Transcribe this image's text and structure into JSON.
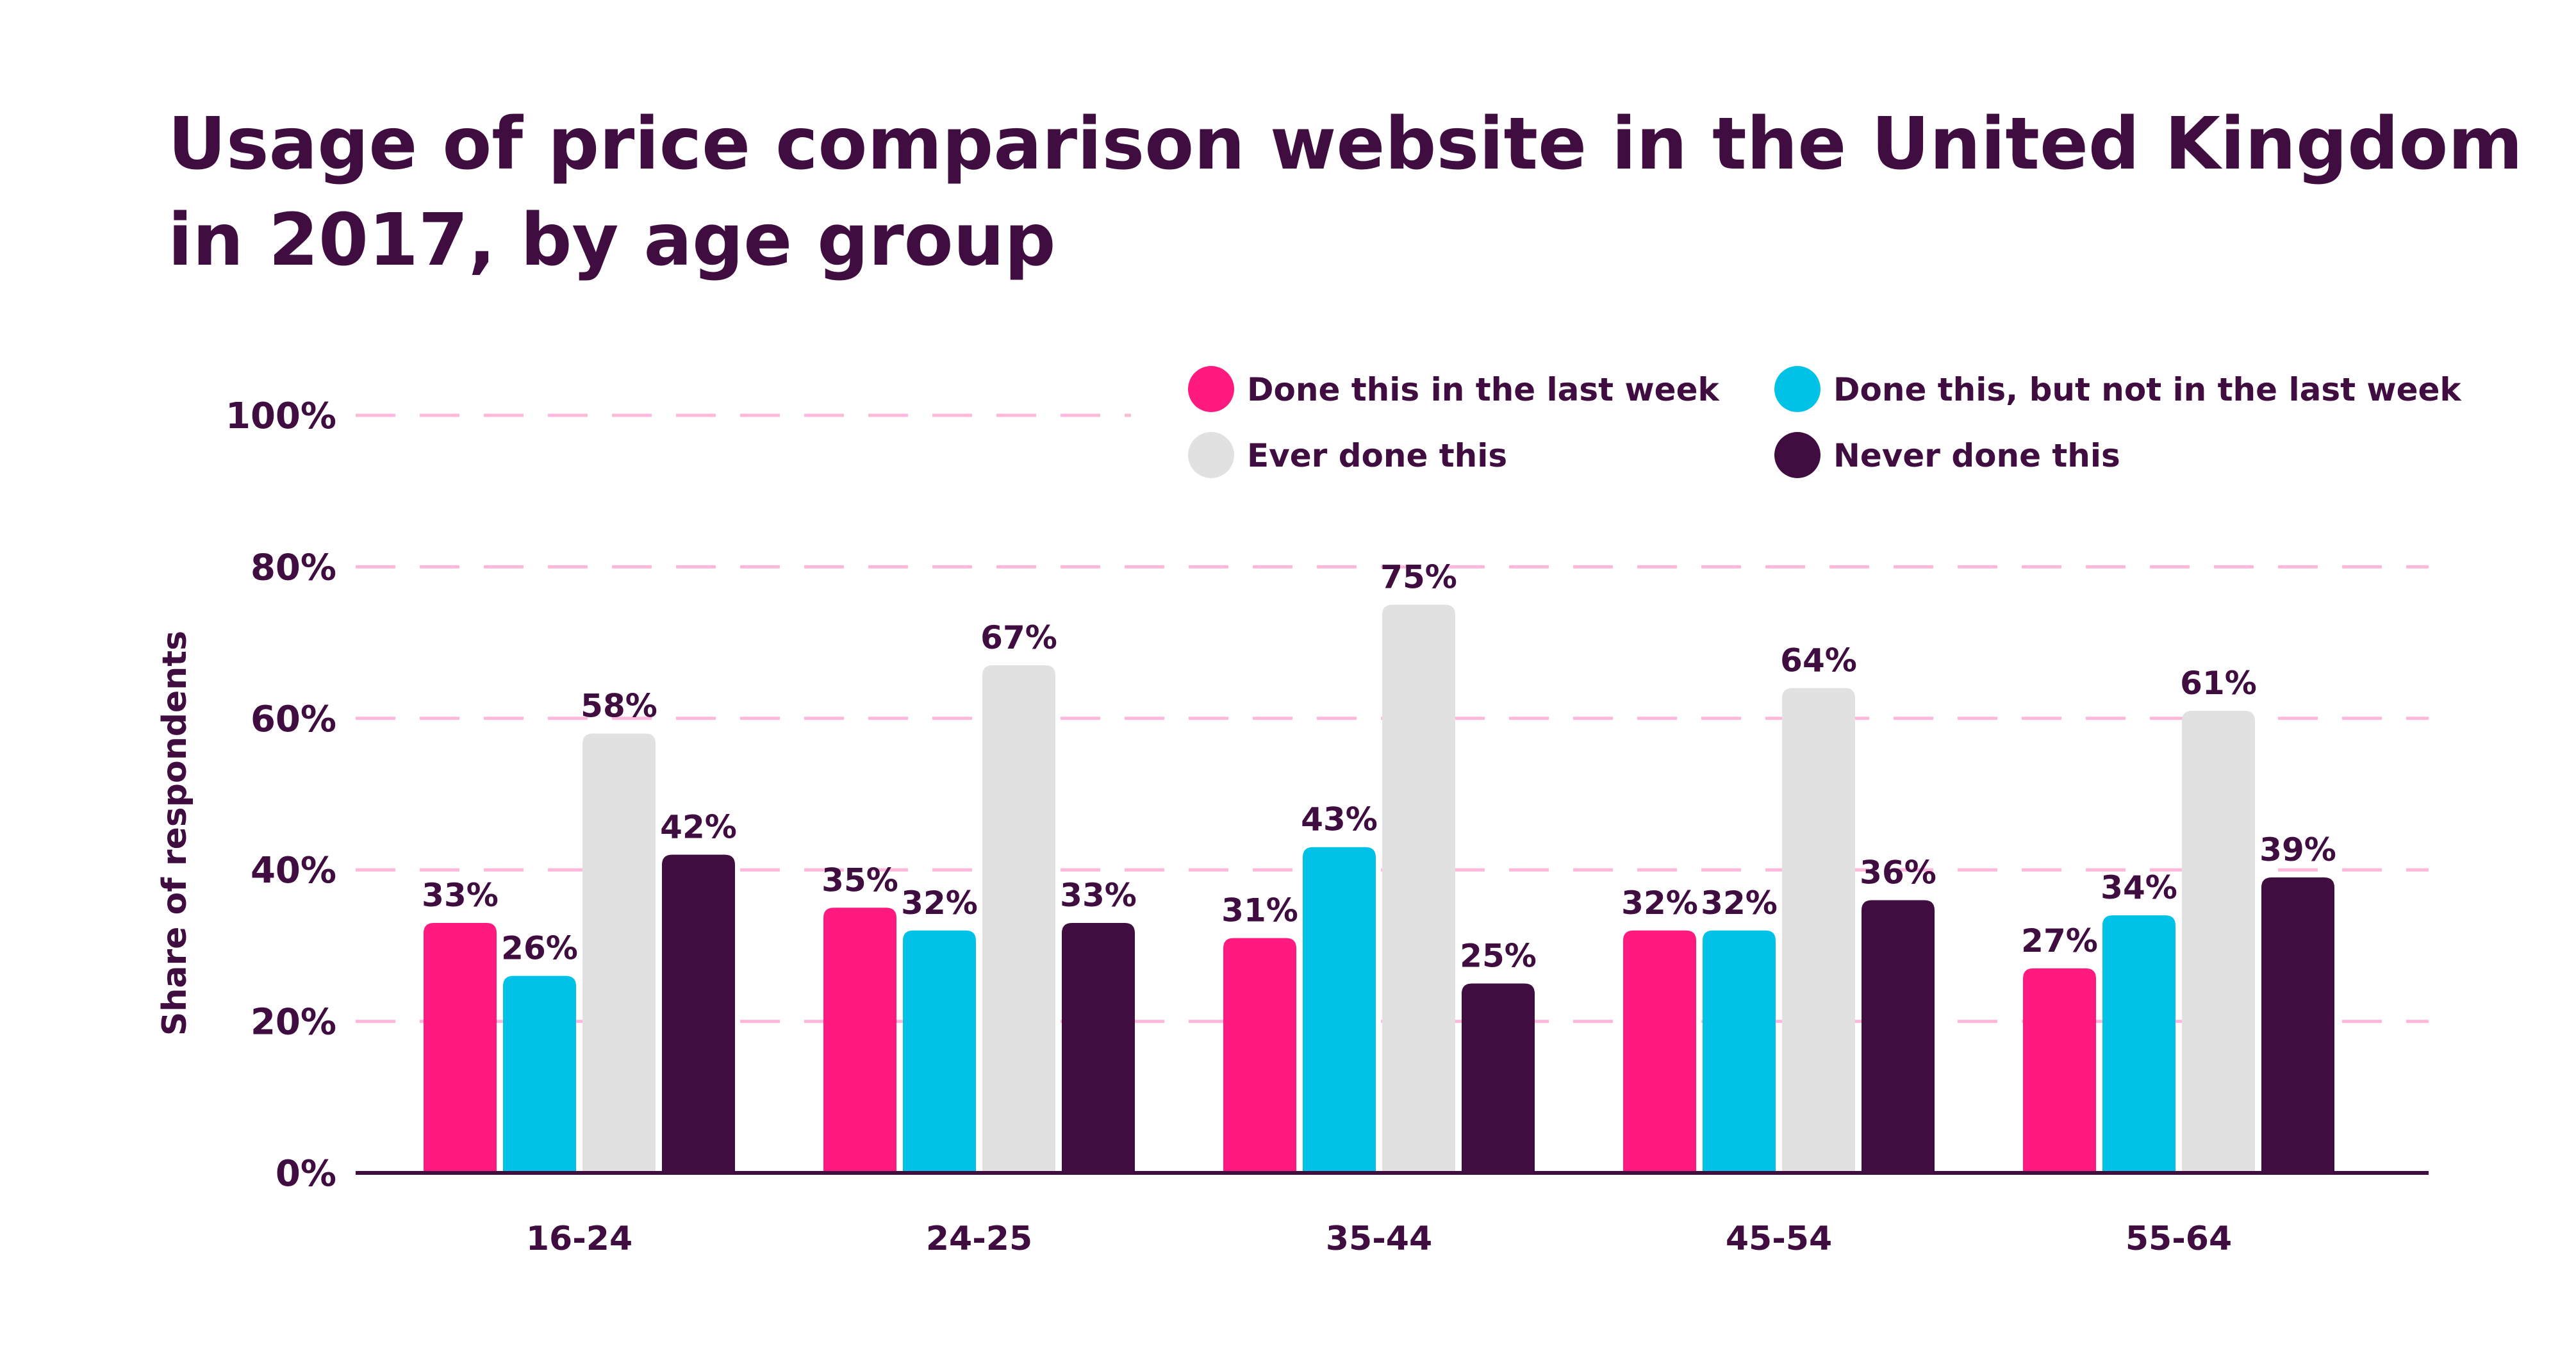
{
  "chart_data": {
    "type": "bar",
    "title_lines": [
      "Usage of price comparison website in the United Kingdom",
      "in 2017, by age group"
    ],
    "ylabel": "Share of respondents",
    "xlabel": "",
    "ylim": [
      0,
      100
    ],
    "yticks": [
      0,
      20,
      40,
      60,
      80,
      100
    ],
    "ytick_labels": [
      "0%",
      "20%",
      "40%",
      "60%",
      "80%",
      "100%"
    ],
    "grid": true,
    "legend_position": "top-right",
    "categories": [
      "16-24",
      "24-25",
      "35-44",
      "45-54",
      "55-64"
    ],
    "series": [
      {
        "name": "Done this in the last week",
        "color": "#ff1a7f",
        "values": [
          33,
          35,
          31,
          32,
          27
        ],
        "labels": [
          "33%",
          "35%",
          "31%",
          "32%",
          "27%"
        ]
      },
      {
        "name": "Done this, but not in the last week",
        "color": "#00c2e6",
        "values": [
          26,
          32,
          43,
          32,
          34
        ],
        "labels": [
          "26%",
          "32%",
          "43%",
          "32%",
          "34%"
        ]
      },
      {
        "name": "Ever done this",
        "color": "#e1e1e1",
        "values": [
          58,
          67,
          75,
          64,
          61
        ],
        "labels": [
          "58%",
          "67%",
          "75%",
          "64%",
          "61%"
        ]
      },
      {
        "name": "Never done this",
        "color": "#3f0d3f",
        "values": [
          42,
          33,
          25,
          36,
          39
        ],
        "labels": [
          "42%",
          "33%",
          "25%",
          "36%",
          "39%"
        ]
      }
    ],
    "colors": {
      "text": "#3f0d3f",
      "axis": "#3f0d3f",
      "grid": "#ffb8dc"
    }
  }
}
